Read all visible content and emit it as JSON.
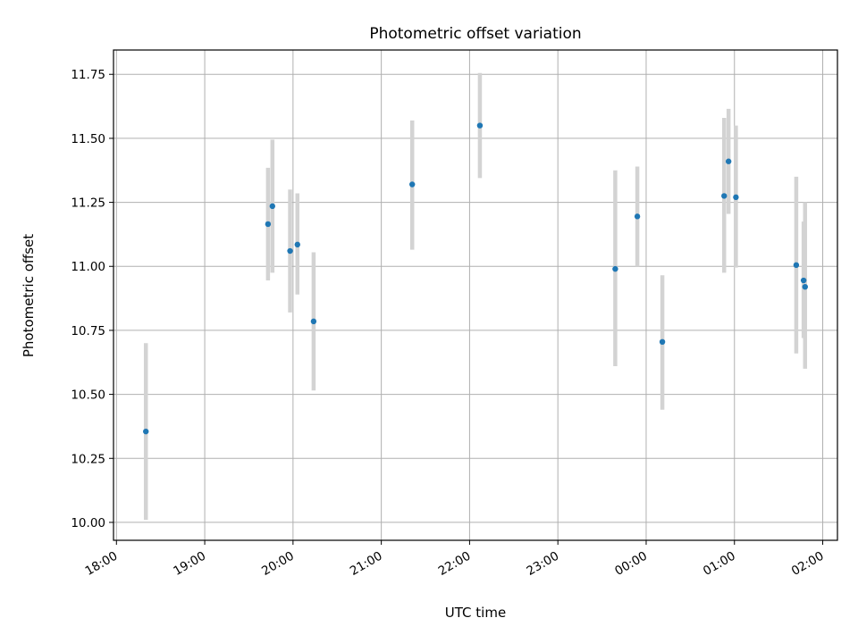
{
  "chart_data": {
    "type": "scatter",
    "title": "Photometric offset variation",
    "xlabel": "UTC time",
    "ylabel": "Photometric offset",
    "x_tick_labels": [
      "18:00",
      "19:00",
      "20:00",
      "21:00",
      "22:00",
      "23:00",
      "00:00",
      "01:00",
      "02:00"
    ],
    "y_tick_labels": [
      "10.00",
      "10.25",
      "10.50",
      "10.75",
      "11.00",
      "11.25",
      "11.50",
      "11.75"
    ],
    "y_ticks": [
      10.0,
      10.25,
      10.5,
      10.75,
      11.0,
      11.25,
      11.5,
      11.75
    ],
    "xlim": [
      "17:58",
      "02:10"
    ],
    "ylim": [
      9.93,
      11.845
    ],
    "grid": true,
    "marker_color": "#1f77b4",
    "errorbar_color": "#d3d3d3",
    "points": [
      {
        "t": "18:20",
        "y": 10.355,
        "lo": 10.01,
        "hi": 10.7
      },
      {
        "t": "19:43",
        "y": 11.165,
        "lo": 10.945,
        "hi": 11.385
      },
      {
        "t": "19:46",
        "y": 11.235,
        "lo": 10.975,
        "hi": 11.495
      },
      {
        "t": "19:58",
        "y": 11.06,
        "lo": 10.82,
        "hi": 11.3
      },
      {
        "t": "20:03",
        "y": 11.085,
        "lo": 10.89,
        "hi": 11.285
      },
      {
        "t": "20:14",
        "y": 10.785,
        "lo": 10.515,
        "hi": 11.055
      },
      {
        "t": "21:21",
        "y": 11.32,
        "lo": 11.065,
        "hi": 11.57
      },
      {
        "t": "22:07",
        "y": 11.55,
        "lo": 11.345,
        "hi": 11.755
      },
      {
        "t": "23:39",
        "y": 10.99,
        "lo": 10.61,
        "hi": 11.375
      },
      {
        "t": "23:54",
        "y": 11.195,
        "lo": 11.0,
        "hi": 11.39
      },
      {
        "t": "00:11",
        "y": 10.705,
        "lo": 10.44,
        "hi": 10.965
      },
      {
        "t": "00:53",
        "y": 11.275,
        "lo": 10.975,
        "hi": 11.58
      },
      {
        "t": "00:56",
        "y": 11.41,
        "lo": 11.205,
        "hi": 11.615
      },
      {
        "t": "01:01",
        "y": 11.27,
        "lo": 10.995,
        "hi": 11.55
      },
      {
        "t": "01:42",
        "y": 11.005,
        "lo": 10.66,
        "hi": 11.35
      },
      {
        "t": "01:47",
        "y": 10.945,
        "lo": 10.72,
        "hi": 11.175
      },
      {
        "t": "01:48",
        "y": 10.92,
        "lo": 10.6,
        "hi": 11.25
      }
    ]
  }
}
